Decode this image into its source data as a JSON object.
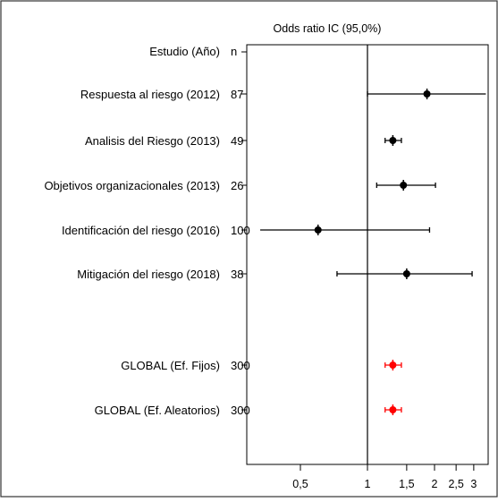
{
  "chart_data": {
    "type": "forest",
    "title": "Odds ratio IC  (95,0%)",
    "header_study": "Estudio  (Año)",
    "header_n": "n",
    "x_scale": "log",
    "xlim": [
      0.33,
      3.4
    ],
    "reference_line": 1,
    "x_ticks": [
      {
        "value": 0.5,
        "label": "0,5"
      },
      {
        "value": 1,
        "label": "1"
      },
      {
        "value": 1.5,
        "label": "1,5"
      },
      {
        "value": 2,
        "label": "2"
      },
      {
        "value": 2.5,
        "label": "2,5"
      },
      {
        "value": 3,
        "label": "3"
      }
    ],
    "studies": [
      {
        "label": "Respuesta al riesgo (2012)",
        "n": "87",
        "or": 1.85,
        "lower": 1.0,
        "upper": 3.4,
        "color": "#000000",
        "arrow_right": true
      },
      {
        "label": "Analisis del Riesgo (2013)",
        "n": "49",
        "or": 1.3,
        "lower": 1.2,
        "upper": 1.42,
        "color": "#000000"
      },
      {
        "label": "Objetivos organizacionales  (2013)",
        "n": "26",
        "or": 1.45,
        "lower": 1.1,
        "upper": 2.02,
        "color": "#000000"
      },
      {
        "label": "Identificación del riesgo (2016)",
        "n": "100",
        "or": 0.6,
        "lower": 0.33,
        "upper": 1.9,
        "color": "#000000",
        "arrow_left": true
      },
      {
        "label": "Mitigación del riesgo (2018)",
        "n": "38",
        "or": 1.5,
        "lower": 0.73,
        "upper": 2.95,
        "color": "#000000"
      },
      {
        "label": "GLOBAL (Ef. Fijos)",
        "n": "300",
        "or": 1.3,
        "lower": 1.2,
        "upper": 1.42,
        "color": "#ff0000"
      },
      {
        "label": "GLOBAL (Ef. Aleatorios)",
        "n": "300",
        "or": 1.3,
        "lower": 1.2,
        "upper": 1.42,
        "color": "#ff0000"
      }
    ]
  }
}
